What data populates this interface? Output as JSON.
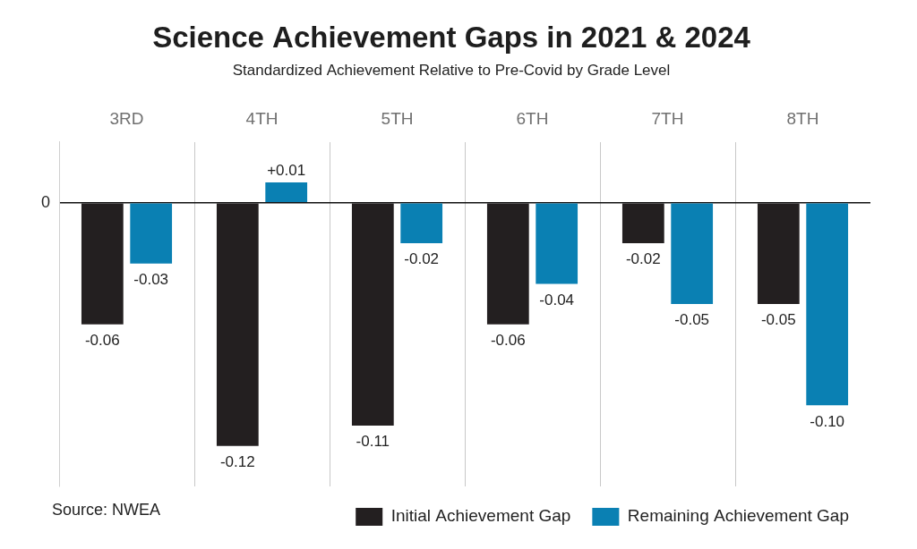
{
  "chart_data": {
    "type": "bar",
    "title": "Science Achievement Gaps in 2021 & 2024",
    "subtitle": "Standardized Achievement Relative to Pre-Covid by Grade Level",
    "source": "Source: NWEA",
    "categories": [
      "3RD",
      "4TH",
      "5TH",
      "6TH",
      "7TH",
      "8TH"
    ],
    "series": [
      {
        "name": "Initial Achievement Gap",
        "color": "#231f20",
        "values": [
          -0.06,
          -0.12,
          -0.11,
          -0.06,
          -0.02,
          -0.05
        ]
      },
      {
        "name": "Remaining Achievement Gap",
        "color": "#0a80b3",
        "values": [
          -0.03,
          0.01,
          -0.02,
          -0.04,
          -0.05,
          -0.1
        ],
        "value_labels": [
          "-0.03",
          "+0.01",
          "-0.02",
          "-0.04",
          "-0.05",
          "-0.10"
        ]
      }
    ],
    "ylim": [
      -0.14,
      0.03
    ],
    "yticks": [
      0
    ],
    "grid": true,
    "legend": "bottom-right",
    "data_labels": true
  }
}
